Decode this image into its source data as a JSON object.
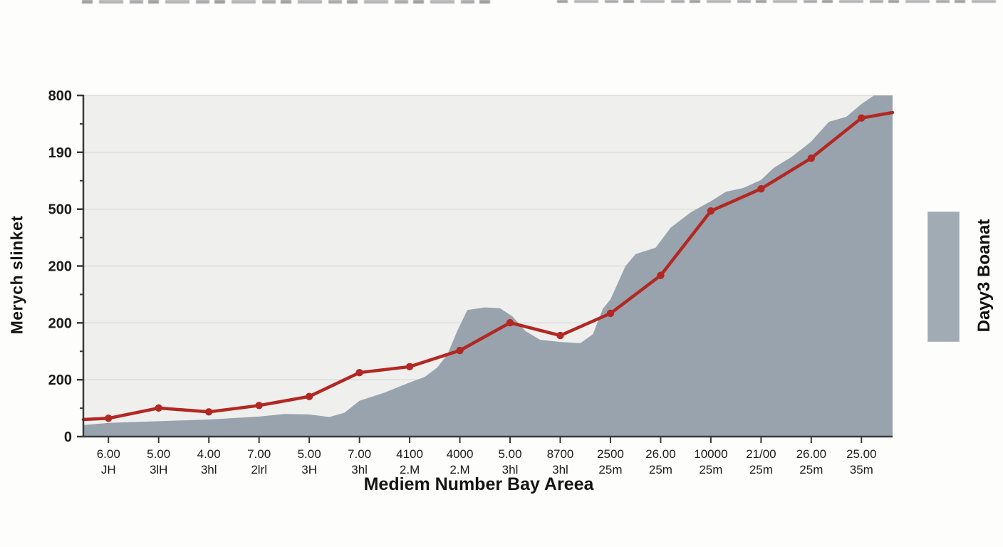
{
  "page": {
    "background": "#fdfdfc"
  },
  "chart_data": {
    "type": "area",
    "title": "",
    "xlabel": "Mediem Number Bay Areea",
    "ylabel": "Merych slinket",
    "plot_background": "#efefed",
    "grid": true,
    "grid_color": "#d7d7d5",
    "axis_color": "#3a3a3a",
    "ylim": [
      0,
      800
    ],
    "x_range_ticks": [
      0.5,
      16.62
    ],
    "y_ticks": [
      {
        "label": "800",
        "value": 800
      },
      {
        "label": "190",
        "value": 666.67
      },
      {
        "label": "500",
        "value": 533.33
      },
      {
        "label": "200",
        "value": 400
      },
      {
        "label": "200",
        "value": 266.67
      },
      {
        "label": "200",
        "value": 133.33
      },
      {
        "label": "0",
        "value": 0
      }
    ],
    "x_ticks": [
      {
        "top": "6.00",
        "bottom": "JH"
      },
      {
        "top": "5.00",
        "bottom": "3lH"
      },
      {
        "top": "4.00",
        "bottom": "3hl"
      },
      {
        "top": "7.00",
        "bottom": "2lrl"
      },
      {
        "top": "5.00",
        "bottom": "3H"
      },
      {
        "top": "7.00",
        "bottom": "3hl"
      },
      {
        "top": "4100",
        "bottom": "2.M"
      },
      {
        "top": "4000",
        "bottom": "2.M"
      },
      {
        "top": "5.00",
        "bottom": "3hl"
      },
      {
        "top": "8700",
        "bottom": "3hl"
      },
      {
        "top": "2500",
        "bottom": "25m"
      },
      {
        "top": "26.00",
        "bottom": "25m"
      },
      {
        "top": "10000",
        "bottom": "25m"
      },
      {
        "top": "21/00",
        "bottom": "25m"
      },
      {
        "top": "26.00",
        "bottom": "25m"
      },
      {
        "top": "25.00",
        "bottom": "35m"
      }
    ],
    "legend": {
      "position": "right",
      "entries": [
        {
          "label": "Dayy3 Boanat",
          "swatch_color": "#a0abb3",
          "series": "gray-area"
        }
      ]
    },
    "series": [
      {
        "name": "Dayy3 Boanat",
        "kind": "area",
        "color": "#98a3ad",
        "points": [
          [
            0.5,
            27
          ],
          [
            1,
            32
          ],
          [
            2,
            36
          ],
          [
            3,
            40
          ],
          [
            4,
            47
          ],
          [
            4.5,
            53
          ],
          [
            5,
            52
          ],
          [
            5.4,
            46
          ],
          [
            5.7,
            56
          ],
          [
            6,
            84
          ],
          [
            6.5,
            103
          ],
          [
            7,
            127
          ],
          [
            7.3,
            140
          ],
          [
            7.55,
            162
          ],
          [
            7.75,
            192
          ],
          [
            7.95,
            248
          ],
          [
            8.15,
            297
          ],
          [
            8.5,
            303
          ],
          [
            8.8,
            301
          ],
          [
            9.05,
            282
          ],
          [
            9.3,
            248
          ],
          [
            9.6,
            227
          ],
          [
            10,
            222
          ],
          [
            10.4,
            219
          ],
          [
            10.65,
            240
          ],
          [
            10.85,
            300
          ],
          [
            11,
            322
          ],
          [
            11.3,
            400
          ],
          [
            11.5,
            428
          ],
          [
            11.9,
            443
          ],
          [
            12.2,
            490
          ],
          [
            12.6,
            526
          ],
          [
            13,
            552
          ],
          [
            13.3,
            574
          ],
          [
            13.65,
            583
          ],
          [
            14,
            602
          ],
          [
            14.25,
            630
          ],
          [
            14.6,
            655
          ],
          [
            15,
            692
          ],
          [
            15.35,
            738
          ],
          [
            15.7,
            750
          ],
          [
            16,
            780
          ],
          [
            16.25,
            800
          ],
          [
            16.62,
            800
          ]
        ]
      },
      {
        "name": "",
        "kind": "line",
        "color": "#b22822",
        "marker": "circle",
        "markers_at": [
          1,
          2,
          3,
          4,
          5,
          6,
          7,
          8,
          9,
          10,
          11,
          12,
          13,
          14,
          15,
          16
        ],
        "points": [
          [
            0.5,
            40
          ],
          [
            1,
            43
          ],
          [
            2,
            67
          ],
          [
            3,
            58
          ],
          [
            4,
            73
          ],
          [
            5,
            94
          ],
          [
            6,
            150
          ],
          [
            7,
            164
          ],
          [
            8,
            202
          ],
          [
            9,
            267
          ],
          [
            10,
            237
          ],
          [
            11,
            289
          ],
          [
            12,
            378
          ],
          [
            13,
            529
          ],
          [
            14,
            581
          ],
          [
            15,
            653
          ],
          [
            16,
            747
          ],
          [
            16.62,
            760
          ]
        ]
      }
    ]
  }
}
